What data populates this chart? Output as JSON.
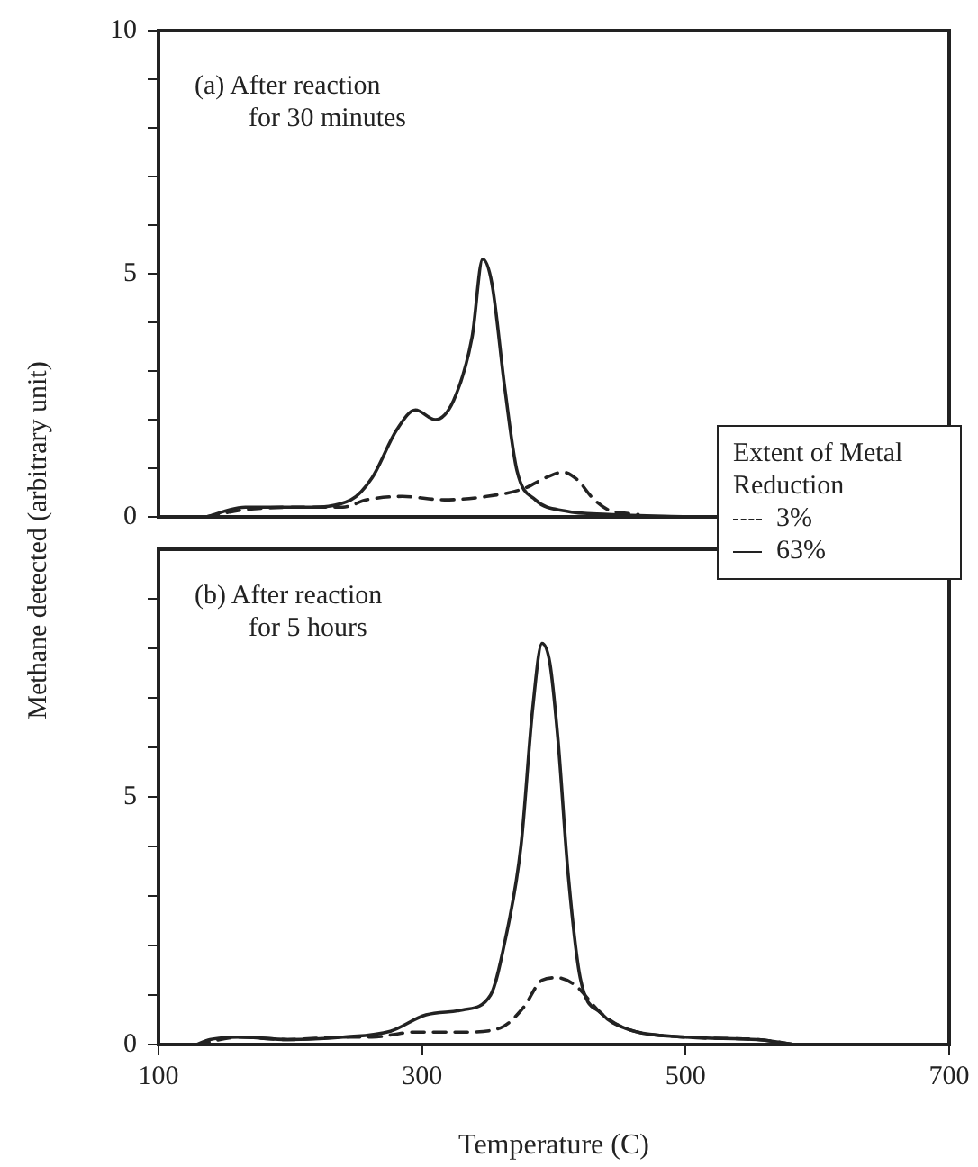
{
  "chart_data": [
    {
      "type": "line",
      "title": "(a) After reaction for 30 minutes",
      "ylabel": "Methane detected (arbitrary unit)",
      "legend_title": "Extent of Metal Reduction",
      "legend": "bottom right",
      "marker": "none",
      "grid": false,
      "tick_labels": "y",
      "xlim": [
        100,
        700
      ],
      "xticks": [
        100,
        300,
        500,
        700
      ],
      "ylim": [
        0,
        10
      ],
      "yticks": [
        0,
        {
          "value": 1,
          "label": null
        },
        {
          "value": 2,
          "label": null
        },
        {
          "value": 3,
          "label": null
        },
        {
          "value": 4,
          "label": null
        },
        5,
        {
          "value": 6,
          "label": null
        },
        {
          "value": 7,
          "label": null
        },
        {
          "value": 8,
          "label": null
        },
        {
          "value": 9,
          "label": null
        },
        10
      ],
      "series": [
        {
          "name": "3%",
          "color": "#222222",
          "line_style": "dashed",
          "x": [
            136,
            166,
            212,
            240,
            258,
            285,
            317,
            349,
            377,
            395,
            407,
            418,
            429,
            441,
            464
          ],
          "values": [
            0,
            0.15,
            0.2,
            0.2,
            0.35,
            0.42,
            0.35,
            0.42,
            0.58,
            0.82,
            0.92,
            0.76,
            0.4,
            0.15,
            0.05
          ]
        },
        {
          "name": "63%",
          "color": "#222222",
          "line_style": "solid",
          "x": [
            136,
            166,
            212,
            246,
            262,
            281,
            295,
            310,
            324,
            338,
            346,
            353,
            363,
            372,
            386,
            409,
            441,
            505
          ],
          "values": [
            0,
            0.2,
            0.2,
            0.35,
            0.8,
            1.8,
            2.2,
            2.0,
            2.4,
            3.7,
            5.3,
            4.8,
            2.6,
            0.95,
            0.35,
            0.12,
            0.05,
            0
          ]
        }
      ]
    },
    {
      "type": "line",
      "title": "(b) After reaction for 5 hours",
      "xlabel": "Temperature (C)",
      "marker": "none",
      "grid": false,
      "xlim": [
        100,
        700
      ],
      "xticks": [
        100,
        300,
        500,
        700
      ],
      "ylim": [
        0,
        10
      ],
      "yticks": [
        0,
        {
          "value": 1,
          "label": null
        },
        {
          "value": 2,
          "label": null
        },
        {
          "value": 3,
          "label": null
        },
        {
          "value": 4,
          "label": null
        },
        5,
        {
          "value": 6,
          "label": null
        },
        {
          "value": 7,
          "label": null
        },
        {
          "value": 8,
          "label": null
        },
        {
          "value": 9,
          "label": null
        }
      ],
      "series": [
        {
          "color": "#222222",
          "line_style": "dashed",
          "x": [
            129,
            162,
            198,
            240,
            262,
            294,
            331,
            359,
            377,
            391,
            402,
            416,
            436,
            454,
            500,
            555,
            583
          ],
          "values": [
            0,
            0.15,
            0.1,
            0.15,
            0.15,
            0.25,
            0.25,
            0.33,
            0.75,
            1.3,
            1.35,
            1.2,
            0.63,
            0.33,
            0.15,
            0.1,
            0
          ]
        },
        {
          "color": "#222222",
          "line_style": "solid",
          "x": [
            129,
            139,
            162,
            198,
            240,
            276,
            303,
            331,
            352,
            363,
            375,
            384,
            391,
            397,
            403,
            411,
            420,
            436,
            454,
            500,
            555,
            583
          ],
          "values": [
            0,
            0.1,
            0.15,
            0.1,
            0.15,
            0.27,
            0.6,
            0.7,
            1.0,
            2.1,
            4.0,
            6.8,
            8.1,
            7.7,
            6.2,
            3.4,
            1.35,
            0.63,
            0.33,
            0.15,
            0.1,
            0
          ]
        }
      ]
    }
  ]
}
